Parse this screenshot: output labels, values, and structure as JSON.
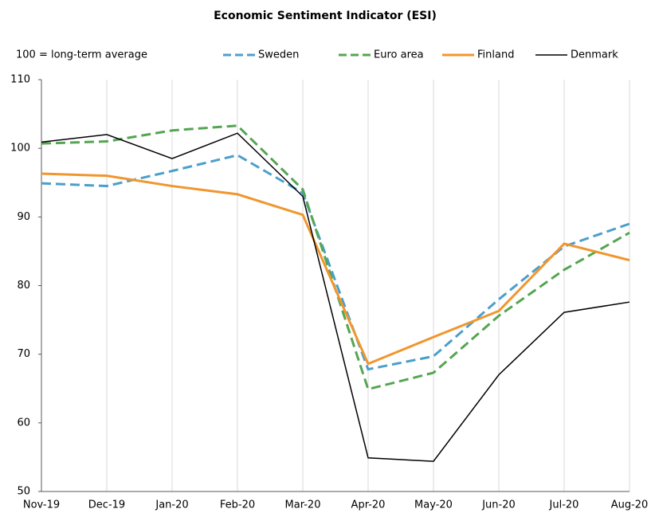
{
  "chart_data": {
    "type": "line",
    "title": "Economic Sentiment Indicator (ESI)",
    "annotation": "100 = long-term average",
    "categories": [
      "Nov-19",
      "Dec-19",
      "Jan-20",
      "Feb-20",
      "Mar-20",
      "Apr-20",
      "May-20",
      "Jun-20",
      "Jul-20",
      "Aug-20"
    ],
    "series": [
      {
        "name": "Sweden",
        "color": "#4b9fcb",
        "dash": true,
        "values": [
          94.9,
          94.5,
          96.7,
          99.0,
          93.5,
          67.8,
          69.7,
          78.0,
          85.7,
          89.0
        ]
      },
      {
        "name": "Euro area",
        "color": "#55a552",
        "dash": true,
        "values": [
          100.7,
          101.0,
          102.6,
          103.3,
          94.0,
          64.9,
          67.3,
          75.6,
          82.3,
          87.7
        ]
      },
      {
        "name": "Finland",
        "color": "#f0962e",
        "dash": false,
        "values": [
          96.3,
          96.0,
          94.5,
          93.3,
          90.3,
          68.6,
          72.5,
          76.3,
          86.1,
          83.7
        ]
      },
      {
        "name": "Denmark",
        "color": "#000000",
        "dash": false,
        "values": [
          100.9,
          102.0,
          98.5,
          102.2,
          93.0,
          54.9,
          54.4,
          67.0,
          76.1,
          77.6
        ]
      }
    ],
    "ylim": [
      50,
      110
    ],
    "yticks": [
      50,
      60,
      70,
      80,
      90,
      100,
      110
    ],
    "grid": true
  }
}
